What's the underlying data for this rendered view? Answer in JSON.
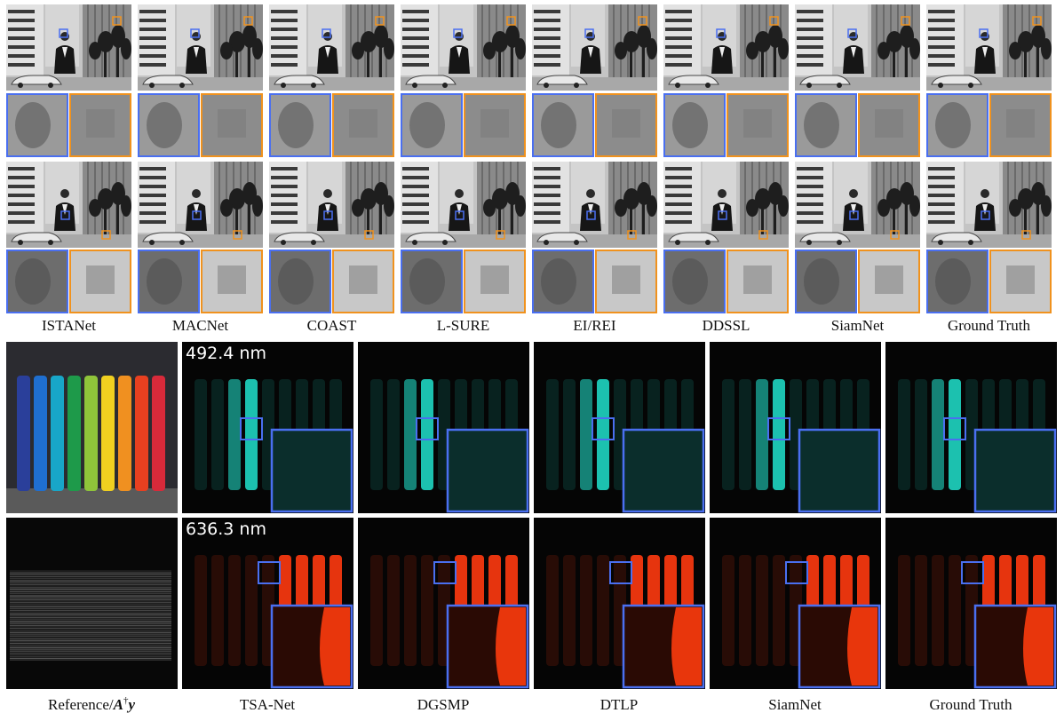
{
  "top_figure": {
    "methods": [
      "ISTANet",
      "MACNet",
      "COAST",
      "L-SURE",
      "EI/REI",
      "DDSSL",
      "SiamNet",
      "Ground Truth"
    ]
  },
  "bottom_figure": {
    "reference_label": {
      "text": "Reference/",
      "operator": "A",
      "superscript": "†",
      "measurement": "y"
    },
    "methods": [
      "TSA-Net",
      "DGSMP",
      "DTLP",
      "SiamNet",
      "Ground Truth"
    ],
    "wavelengths": [
      "492.4 nm",
      "636.3 nm"
    ]
  }
}
